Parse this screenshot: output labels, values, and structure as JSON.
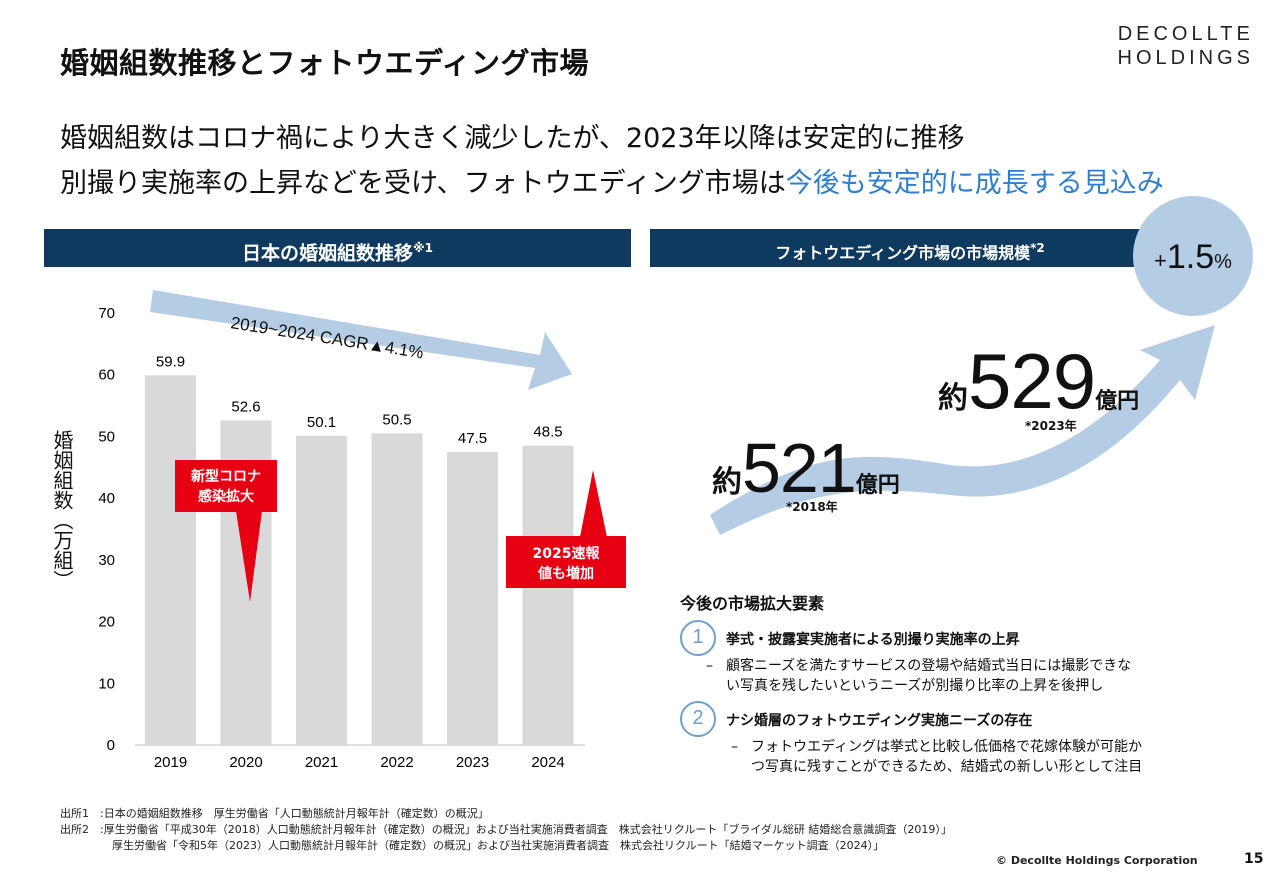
{
  "header": {
    "title": "婚姻組数推移とフォトウエディング市場",
    "logo_line1": "DECOLLTE",
    "logo_line2": "HOLDINGS"
  },
  "lead": {
    "line1": "婚姻組数はコロナ禍により大きく減少したが、2023年以降は安定的に推移",
    "line2_plain": "別撮り実施率の上昇などを受け、フォトウエディング市場は",
    "line2_highlight": "今後も安定的に成長する見込み"
  },
  "left_panel": {
    "heading": "日本の婚姻組数推移",
    "heading_note": "※1"
  },
  "chart_data": {
    "type": "bar",
    "title": "日本の婚姻組数推移",
    "ylabel": "婚姻組数（万組）",
    "xlabel": "",
    "categories": [
      "2019",
      "2020",
      "2021",
      "2022",
      "2023",
      "2024"
    ],
    "values": [
      59.9,
      52.6,
      50.1,
      50.5,
      47.5,
      48.5
    ],
    "value_labels": [
      "59.9",
      "52.6",
      "50.1",
      "50.5",
      "47.5",
      "48.5"
    ],
    "ylim": [
      0,
      70
    ],
    "yticks": [
      "0",
      "10",
      "20",
      "30",
      "40",
      "50",
      "60",
      "70"
    ],
    "grid": false,
    "bar_color": "#d9d9d9",
    "annotations": {
      "trend_arrow": "2019~2024 CAGR▲4.1%",
      "covid": [
        "新型コロナ",
        "感染拡大"
      ],
      "prelim": [
        "2025速報",
        "値も増加"
      ]
    }
  },
  "right_panel": {
    "heading": "フォトウエディング市場の市場規模",
    "heading_note": "*2",
    "growth": {
      "sign": "+",
      "value": "1.5",
      "unit": "%"
    },
    "market_2018": {
      "prefix": "約",
      "value": "521",
      "unit": "億円",
      "note": "*2018年"
    },
    "market_2023": {
      "prefix": "約",
      "value": "529",
      "unit": "億円",
      "note": "*2023年"
    },
    "factors_title": "今後の市場拡大要素",
    "factors": [
      {
        "num": "1",
        "heading": "挙式・披露宴実施者による別撮り実施率の上昇",
        "dash": "–",
        "line1": "顧客ニーズを満たすサービスの登場や結婚式当日には撮影できな",
        "line2": "い写真を残したいというニーズが別撮り比率の上昇を後押し"
      },
      {
        "num": "2",
        "heading": "ナシ婚層のフォトウエディング実施ニーズの存在",
        "dash": "–",
        "line1": "フォトウエディングは挙式と比較し低価格で花嫁体験が可能か",
        "line2": "つ写真に残すことができるため、結婚式の新しい形として注目"
      }
    ]
  },
  "footer": {
    "source1": "出所1　:日本の婚姻組数推移　厚生労働省「人口動態統計月報年計（確定数）の概況」",
    "source2a": "出所2　:厚生労働省「平成30年（2018）人口動態統計月報年計（確定数）の概況」および当社実施消費者調査　株式会社リクルート「ブライダル総研 結婚総合意識調査（2019）」",
    "source2b": "厚生労働省「令和5年（2023）人口動態統計月報年計（確定数）の概況」および当社実施消費者調査　株式会社リクルート「結婚マーケット調査（2024）」",
    "copyright": "© Decollte Holdings Corporation",
    "page": "15"
  },
  "colors": {
    "navy": "#0f3a5f",
    "accent_blue": "#2f7fd0",
    "arrow_blue": "#b4cce4",
    "red": "#e60012",
    "bar": "#d9d9d9"
  }
}
